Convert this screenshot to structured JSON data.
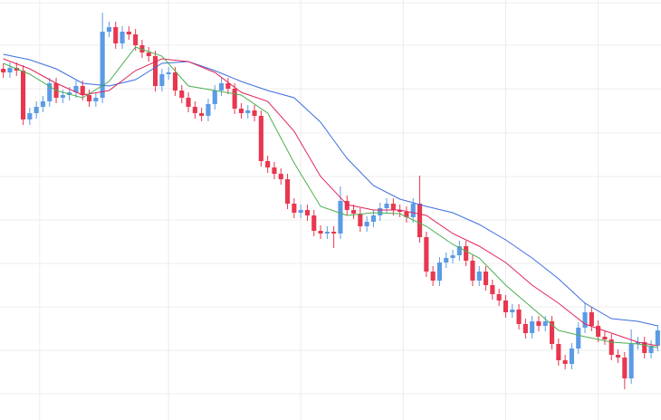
{
  "chart_data": {
    "type": "candlestick",
    "x": [
      0,
      1,
      2,
      3,
      4,
      5,
      6,
      7,
      8,
      9,
      10,
      11,
      12,
      13,
      14,
      15,
      16,
      17,
      18,
      19,
      20,
      21,
      22,
      23,
      24,
      25,
      26,
      27,
      28,
      29,
      30,
      31,
      32,
      33,
      34,
      35,
      36,
      37,
      38,
      39,
      40,
      41,
      42,
      43,
      44,
      45,
      46,
      47,
      48,
      49,
      50,
      51,
      52,
      53,
      54,
      55,
      56,
      57,
      58,
      59,
      60,
      61,
      62,
      63,
      64,
      65,
      66,
      67,
      68,
      69,
      70,
      71,
      72,
      73,
      74,
      75,
      76,
      77,
      78,
      79,
      80,
      81,
      82,
      83,
      84,
      85,
      86,
      87,
      88,
      89,
      90,
      91,
      92,
      93,
      94,
      95,
      96,
      97,
      98,
      99
    ],
    "open": [
      388,
      384,
      389,
      386,
      332,
      339,
      346,
      352,
      372,
      356,
      359,
      362,
      369,
      359,
      352,
      356,
      429,
      434,
      416,
      429,
      426,
      414,
      406,
      402,
      369,
      382,
      384,
      364,
      356,
      346,
      339,
      336,
      349,
      364,
      372,
      366,
      344,
      339,
      342,
      336,
      286,
      279,
      272,
      266,
      239,
      229,
      232,
      226,
      209,
      206,
      208,
      206,
      242,
      232,
      228,
      214,
      219,
      226,
      234,
      239,
      232,
      230,
      224,
      239,
      202,
      164,
      154,
      174,
      179,
      182,
      192,
      176,
      154,
      164,
      149,
      139,
      132,
      119,
      122,
      106,
      96,
      109,
      104,
      109,
      84,
      66,
      62,
      79,
      102,
      119,
      104,
      92,
      89,
      72,
      69,
      46,
      84,
      86,
      74,
      82
    ],
    "high": [
      394,
      395,
      395,
      392,
      345,
      352,
      358,
      378,
      378,
      365,
      368,
      375,
      375,
      365,
      362,
      450,
      440,
      440,
      435,
      435,
      432,
      420,
      412,
      408,
      388,
      390,
      390,
      370,
      362,
      352,
      345,
      355,
      370,
      378,
      378,
      372,
      350,
      348,
      348,
      342,
      292,
      285,
      278,
      272,
      245,
      238,
      238,
      232,
      215,
      214,
      214,
      258,
      248,
      238,
      234,
      225,
      232,
      240,
      245,
      245,
      238,
      236,
      245,
      270,
      208,
      170,
      180,
      185,
      188,
      198,
      198,
      182,
      170,
      170,
      155,
      145,
      138,
      128,
      128,
      112,
      115,
      115,
      115,
      115,
      90,
      72,
      85,
      108,
      130,
      125,
      110,
      98,
      95,
      78,
      75,
      100,
      92,
      92,
      88,
      105
    ],
    "low": [
      378,
      378,
      380,
      326,
      326,
      333,
      340,
      346,
      350,
      350,
      353,
      356,
      353,
      346,
      346,
      350,
      423,
      410,
      410,
      420,
      408,
      400,
      396,
      363,
      363,
      376,
      358,
      350,
      340,
      333,
      330,
      330,
      343,
      358,
      360,
      338,
      333,
      333,
      330,
      280,
      273,
      266,
      260,
      233,
      223,
      223,
      220,
      203,
      200,
      200,
      190,
      200,
      226,
      222,
      208,
      208,
      213,
      220,
      228,
      226,
      224,
      218,
      218,
      196,
      158,
      148,
      148,
      168,
      173,
      176,
      170,
      148,
      148,
      143,
      133,
      126,
      113,
      113,
      100,
      90,
      90,
      98,
      98,
      78,
      60,
      56,
      56,
      73,
      96,
      98,
      86,
      83,
      66,
      63,
      34,
      40,
      78,
      68,
      68,
      76
    ],
    "close": [
      384,
      389,
      386,
      332,
      339,
      346,
      352,
      372,
      356,
      359,
      362,
      369,
      359,
      352,
      356,
      429,
      434,
      416,
      429,
      426,
      414,
      406,
      402,
      369,
      382,
      384,
      364,
      356,
      346,
      339,
      336,
      349,
      364,
      372,
      366,
      344,
      339,
      342,
      336,
      286,
      279,
      272,
      266,
      239,
      229,
      232,
      226,
      209,
      206,
      208,
      206,
      242,
      232,
      228,
      214,
      219,
      226,
      234,
      239,
      232,
      230,
      224,
      239,
      202,
      164,
      154,
      174,
      179,
      182,
      192,
      176,
      154,
      164,
      149,
      139,
      132,
      119,
      122,
      106,
      96,
      109,
      104,
      109,
      84,
      66,
      62,
      79,
      102,
      119,
      104,
      92,
      89,
      72,
      69,
      46,
      84,
      86,
      74,
      82,
      99
    ],
    "up_color": "#5b9be6",
    "down_color": "#e8374f",
    "series": [
      {
        "color": "#3b6fe0",
        "x": [
          0,
          4,
          8,
          12,
          16,
          20,
          24,
          28,
          32,
          36,
          40,
          44,
          48,
          52,
          56,
          60,
          64,
          68,
          72,
          76,
          80,
          84,
          88,
          92,
          96,
          99
        ],
        "values": [
          404,
          398,
          388,
          372,
          369,
          376,
          394,
          396,
          386,
          374,
          364,
          356,
          329,
          289,
          259,
          244,
          236,
          229,
          216,
          199,
          179,
          156,
          129,
          112,
          109,
          104
        ]
      },
      {
        "color": "#e0245a",
        "x": [
          0,
          4,
          8,
          12,
          16,
          20,
          24,
          28,
          32,
          36,
          40,
          44,
          48,
          52,
          56,
          60,
          64,
          68,
          72,
          76,
          80,
          84,
          88,
          92,
          96,
          99
        ],
        "values": [
          399,
          388,
          372,
          359,
          364,
          386,
          399,
          396,
          384,
          362,
          352,
          319,
          269,
          238,
          232,
          232,
          226,
          206,
          192,
          174,
          149,
          129,
          106,
          96,
          86,
          82
        ]
      },
      {
        "color": "#4caf50",
        "x": [
          0,
          4,
          8,
          12,
          16,
          20,
          24,
          28,
          32,
          36,
          40,
          44,
          48,
          52,
          56,
          60,
          64,
          68,
          72,
          76,
          80,
          84,
          88,
          92,
          96,
          99
        ],
        "values": [
          394,
          382,
          364,
          356,
          374,
          412,
          402,
          369,
          364,
          359,
          339,
          284,
          236,
          226,
          229,
          228,
          214,
          194,
          179,
          149,
          124,
          99,
          92,
          86,
          84,
          80
        ]
      }
    ],
    "xlim": [
      -0.5,
      99.5
    ],
    "ylim": [
      0,
      464
    ],
    "xticks": [
      5.5,
      25,
      45,
      60.5,
      76,
      90
    ],
    "yticks": [
      29,
      77,
      125,
      173,
      221,
      269,
      317,
      366,
      414,
      461
    ],
    "grid": true
  }
}
